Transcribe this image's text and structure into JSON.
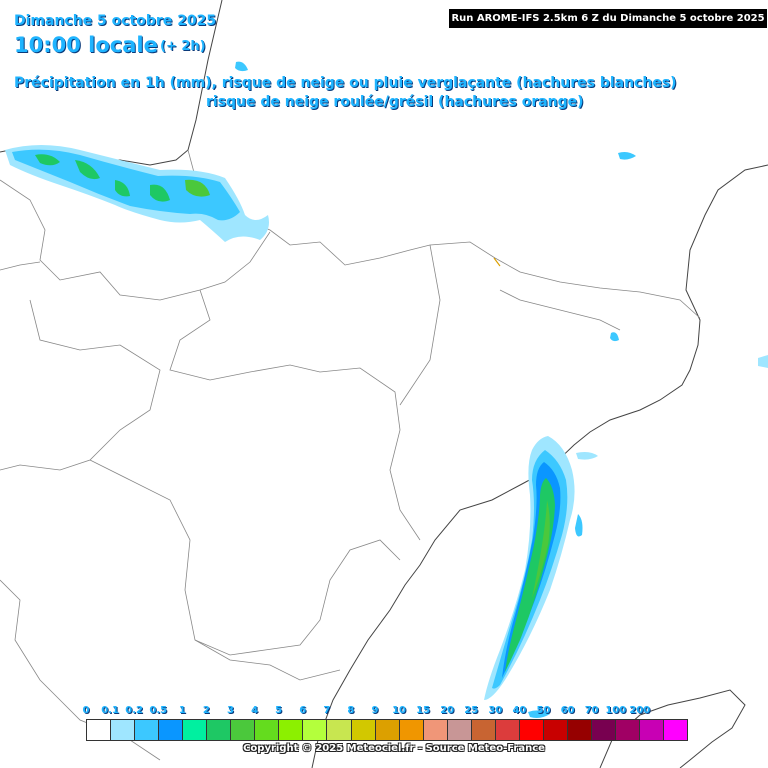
{
  "header": {
    "date": "Dimanche 5 octobre 2025",
    "time": "10:00 locale",
    "lead": "(+ 2h)",
    "desc_line1": "Précipitation en 1h (mm), risque de neige ou pluie verglaçante (hachures blanches)",
    "desc_line2": "risque de neige roulée/grésil (hachures orange)"
  },
  "run_info": "Run AROME-IFS 2.5km 6 Z du Dimanche 5 octobre 2025",
  "legend": {
    "ticks": [
      "0",
      "0.1",
      "0.2",
      "0.5",
      "1",
      "2",
      "3",
      "4",
      "5",
      "6",
      "7",
      "8",
      "9",
      "10",
      "15",
      "20",
      "25",
      "30",
      "40",
      "50",
      "60",
      "70",
      "100",
      "200"
    ],
    "colors": [
      "#ffffff",
      "#9fe6ff",
      "#3cc8ff",
      "#0a96ff",
      "#00f0a0",
      "#1ec864",
      "#4bc83c",
      "#64dc1e",
      "#8cf000",
      "#b4ff3c",
      "#c8e650",
      "#d2c800",
      "#dca000",
      "#f09600",
      "#f09678",
      "#c89696",
      "#c86432",
      "#dc3c3c",
      "#ff0000",
      "#c80000",
      "#960000",
      "#780050",
      "#a00064",
      "#c800b4",
      "#ff00ff"
    ]
  },
  "copyright": "Copyright © 2025 Meteociel.fr - Source Meteo-France",
  "colors": {
    "title": "#1fb4ff",
    "border": "#555555",
    "light_precip": "#9fe6ff",
    "medium_precip": "#3cc8ff",
    "strong_precip": "#0a96ff",
    "green_precip": "#1ec864"
  }
}
